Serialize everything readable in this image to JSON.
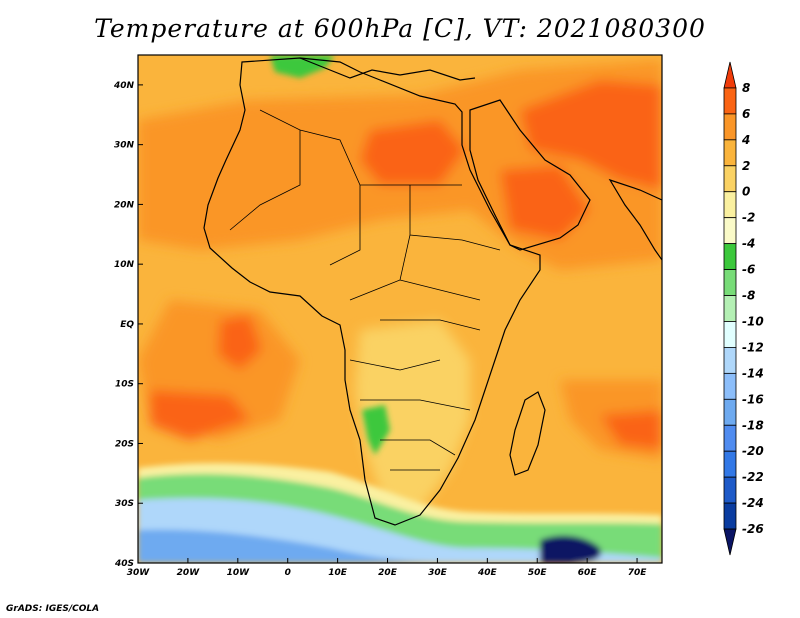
{
  "title": "Temperature at 600hPa [C], VT: 2021080300",
  "credit": "GrADS: IGES/COLA",
  "map": {
    "lon_range": [
      -30,
      75
    ],
    "lat_range": [
      -40,
      45
    ],
    "lon_ticks": [
      "30W",
      "20W",
      "10W",
      "0",
      "10E",
      "20E",
      "30E",
      "40E",
      "50E",
      "60E",
      "70E"
    ],
    "lon_tick_values": [
      -30,
      -20,
      -10,
      0,
      10,
      20,
      30,
      40,
      50,
      60,
      70
    ],
    "lat_ticks": [
      "40S",
      "30S",
      "20S",
      "10S",
      "EQ",
      "10N",
      "20N",
      "30N",
      "40N"
    ],
    "lat_tick_values": [
      -40,
      -30,
      -20,
      -10,
      0,
      10,
      20,
      30,
      40
    ],
    "colorbar": {
      "labels": [
        "8",
        "6",
        "4",
        "2",
        "0",
        "-2",
        "-4",
        "-6",
        "-8",
        "-10",
        "-12",
        "-14",
        "-16",
        "-18",
        "-20",
        "-22",
        "-24",
        "-26"
      ],
      "colors": [
        "#f03c0a",
        "#fa6414",
        "#fa9628",
        "#fab43c",
        "#fad264",
        "#faf0a0",
        "#fafac8",
        "#3cc83c",
        "#78dc78",
        "#b4f0b4",
        "#e1ffff",
        "#afd7fa",
        "#8cbefa",
        "#6eaaf0",
        "#508cf0",
        "#3278e6",
        "#1e5ac8",
        "#0a3ca0",
        "#0a1464"
      ]
    },
    "colors": {
      "warm_base": "#fab43c",
      "warmer": "#fa9628",
      "hot": "#fa6414",
      "mild": "#fad264",
      "pale": "#faf0a0",
      "green": "#78dc78",
      "dark_green": "#3cc83c",
      "light_blue": "#afd7fa",
      "blue": "#6eaaf0",
      "navy": "#0a1464"
    }
  }
}
